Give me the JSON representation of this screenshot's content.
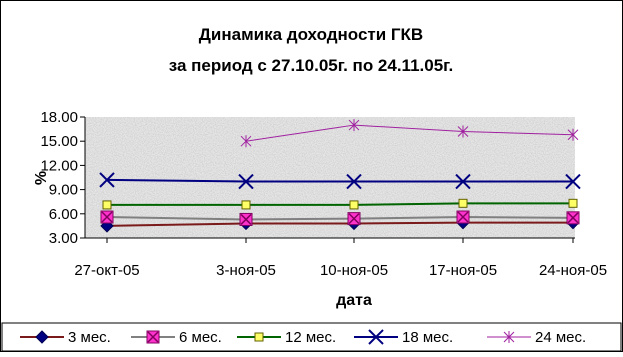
{
  "chart_data": {
    "type": "line",
    "title_lines": [
      "Динамика доходности ГКВ",
      "за период с 27.10.05г. по 24.11.05г."
    ],
    "xlabel": "дата",
    "ylabel": "%",
    "ylim": [
      3,
      18
    ],
    "yticks": [
      "3.00",
      "6.00",
      "9.00",
      "12.00",
      "15.00",
      "18.00"
    ],
    "categories": [
      "27-окт-05",
      "3-ноя-05",
      "10-ноя-05",
      "17-ноя-05",
      "24-ноя-05"
    ],
    "series": [
      {
        "name": "3 мес.",
        "color": "#7a1a1a",
        "marker": "diamond",
        "values": [
          4.5,
          4.8,
          4.8,
          4.9,
          4.9
        ]
      },
      {
        "name": "6 мес.",
        "color": "#808080",
        "marker": "square-magenta",
        "values": [
          5.6,
          5.3,
          5.4,
          5.6,
          5.5
        ]
      },
      {
        "name": "12 мес.",
        "color": "#006400",
        "marker": "square-yellow",
        "values": [
          7.1,
          7.1,
          7.1,
          7.3,
          7.3
        ]
      },
      {
        "name": "18 мес.",
        "color": "#000080",
        "marker": "x",
        "values": [
          10.2,
          10.0,
          10.0,
          10.0,
          10.0
        ]
      },
      {
        "name": "24 мес.",
        "color": "#a020a0",
        "marker": "star",
        "values": [
          null,
          15.0,
          17.0,
          16.2,
          15.8
        ]
      }
    ],
    "grid": false,
    "legend_position": "bottom",
    "plot_background": "noise-gray"
  }
}
